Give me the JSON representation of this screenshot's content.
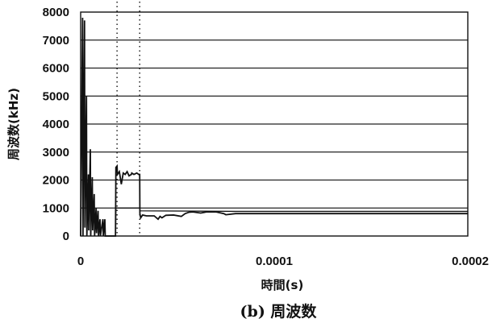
{
  "chart_data": {
    "type": "line",
    "title": "",
    "caption": "(b) 周波数",
    "xlabel": "時間(s)",
    "ylabel": "周波数(kHz)",
    "xlim": [
      0,
      0.0002
    ],
    "ylim": [
      0,
      8000
    ],
    "x_ticks": [
      "0",
      "0.0001",
      "0.0002"
    ],
    "y_ticks": [
      "0",
      "1000",
      "2000",
      "3000",
      "4000",
      "5000",
      "6000",
      "7000",
      "8000"
    ],
    "grid": "horizontal",
    "legend": "none",
    "colors": {
      "line": "#111111",
      "grid": "#222222"
    },
    "markers_x": [
      1.88e-05,
      3.05e-05
    ],
    "series": [
      {
        "x": [
          0,
          1e-06,
          1.2e-06,
          2e-06,
          2.2e-06,
          3e-06,
          3.2e-06,
          4e-06,
          4.2e-06,
          5e-06,
          5.2e-06,
          6e-06,
          6.2e-06,
          7e-06,
          7.2e-06,
          8e-06,
          8.2e-06,
          9e-06,
          9.2e-06,
          1e-05,
          1.02e-05,
          1.15e-05,
          1.17e-05,
          1.25e-05,
          1.27e-05,
          1.8e-05,
          1.82e-05,
          1.88e-05,
          1.9e-05,
          2e-05,
          2.1e-05,
          2.2e-05,
          2.3e-05,
          2.4e-05,
          2.5e-05,
          2.62e-05,
          2.64e-05,
          2.75e-05,
          2.9e-05,
          3e-05,
          3.05e-05,
          3.06e-05,
          3.1e-05,
          3.2e-05,
          3.4e-05,
          3.8e-05,
          4e-05,
          4.1e-05,
          4.2e-05,
          4.4e-05,
          4.8e-05,
          5.2e-05,
          5.4e-05,
          5.6e-05,
          5.8e-05,
          6.2e-05,
          6.5e-05,
          7e-05,
          7.4e-05,
          7.5e-05,
          8e-05,
          9e-05,
          0.0001,
          0.00012,
          0.00015,
          0.00018,
          0.0002
        ],
        "y": [
          0,
          7800,
          0,
          7700,
          300,
          5000,
          0,
          2200,
          200,
          3100,
          0,
          2100,
          200,
          1500,
          0,
          1000,
          100,
          900,
          0,
          600,
          0,
          600,
          0,
          600,
          0,
          0,
          2450,
          2500,
          2200,
          2300,
          1850,
          2250,
          2200,
          2300,
          2150,
          2200,
          2250,
          2200,
          2250,
          2200,
          2200,
          800,
          650,
          750,
          720,
          720,
          600,
          700,
          650,
          740,
          750,
          700,
          800,
          850,
          860,
          820,
          860,
          860,
          800,
          760,
          800,
          800,
          800,
          800,
          800,
          800,
          800
        ]
      },
      {
        "x": [
          1.27e-05,
          1.8e-05,
          1.82e-05,
          1.88e-05,
          3.05e-05,
          3.06e-05,
          8e-05,
          0.00012,
          0.0002
        ],
        "y": [
          0,
          0,
          1000,
          1000,
          1000,
          900,
          880,
          880,
          880
        ]
      }
    ]
  }
}
